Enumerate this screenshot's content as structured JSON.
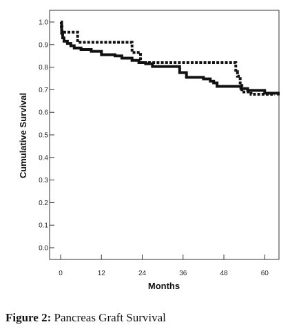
{
  "chart_data": {
    "type": "line",
    "step": true,
    "xlabel": "Months",
    "ylabel": "Cumulative Survival",
    "xlim": [
      0,
      64
    ],
    "ylim": [
      0,
      1.0
    ],
    "x_ticks": [
      0,
      12,
      24,
      36,
      48,
      60
    ],
    "y_ticks": [
      0.0,
      0.1,
      0.2,
      0.3,
      0.4,
      0.5,
      0.6,
      0.7,
      0.8,
      0.9,
      1.0
    ],
    "grid": false,
    "legend": "none",
    "series": [
      {
        "style": "dotted",
        "color": "#111111",
        "x": [
          0,
          0.2,
          0.4,
          4.5,
          5.0,
          21.0,
          23.5,
          26.0,
          51.5,
          52.0,
          52.8,
          53.3,
          56.0,
          63.0
        ],
        "y": [
          1.0,
          0.98,
          0.955,
          0.955,
          0.91,
          0.865,
          0.82,
          0.82,
          0.78,
          0.76,
          0.73,
          0.69,
          0.68,
          0.68
        ]
      },
      {
        "style": "solid",
        "color": "#111111",
        "x": [
          0,
          0.3,
          0.6,
          1.0,
          2.0,
          3.0,
          4.0,
          6.0,
          9.0,
          12.0,
          16.0,
          18.0,
          21.0,
          23.0,
          25.0,
          27.0,
          35.0,
          37.0,
          42.0,
          44.0,
          45.0,
          46.0,
          53.0,
          55.0,
          60.0,
          64.0
        ],
        "y": [
          1.0,
          0.95,
          0.93,
          0.915,
          0.905,
          0.895,
          0.885,
          0.878,
          0.87,
          0.855,
          0.85,
          0.84,
          0.83,
          0.82,
          0.815,
          0.803,
          0.776,
          0.755,
          0.748,
          0.738,
          0.73,
          0.715,
          0.705,
          0.697,
          0.685,
          0.675
        ]
      }
    ]
  },
  "caption": {
    "label": "Figure 2:",
    "text": "Pancreas Graft Survival"
  }
}
